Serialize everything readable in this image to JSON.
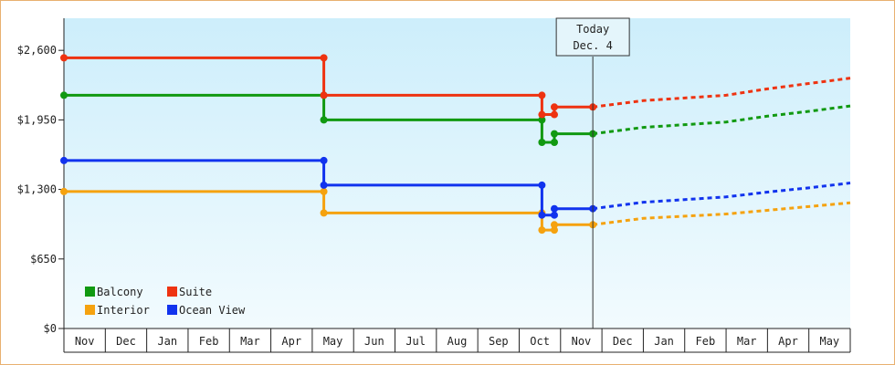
{
  "chart_data": {
    "type": "line",
    "months": [
      "Nov",
      "Dec",
      "Jan",
      "Feb",
      "Mar",
      "Apr",
      "May",
      "Jun",
      "Jul",
      "Aug",
      "Sep",
      "Oct",
      "Nov",
      "Dec",
      "Jan",
      "Feb",
      "Mar",
      "Apr",
      "May"
    ],
    "ylim": [
      0,
      2900
    ],
    "yticks": [
      0,
      650,
      1300,
      1950,
      2600
    ],
    "ytick_labels": [
      "$0",
      "$650",
      "$1,300",
      "$1,950",
      "$2,600"
    ],
    "today": {
      "label_line1": "Today",
      "label_line2": "Dec. 4",
      "x": 12.78
    },
    "grid": false,
    "legend_position": "bottom-left",
    "series": [
      {
        "name": "Balcony",
        "color": "#119911",
        "points": [
          [
            0,
            2180
          ],
          [
            6.28,
            2180
          ],
          [
            6.28,
            1950
          ],
          [
            11.55,
            1950
          ],
          [
            11.55,
            1740
          ],
          [
            11.85,
            1740
          ],
          [
            11.85,
            1820
          ],
          [
            12.78,
            1820
          ]
        ],
        "markers": [
          [
            0,
            2180
          ],
          [
            6.28,
            2180
          ],
          [
            6.28,
            1950
          ],
          [
            11.55,
            1950
          ],
          [
            11.55,
            1740
          ],
          [
            11.85,
            1740
          ],
          [
            11.85,
            1820
          ],
          [
            12.78,
            1820
          ]
        ],
        "forecast": [
          [
            12.78,
            1820
          ],
          [
            14,
            1880
          ],
          [
            15,
            1905
          ],
          [
            16,
            1930
          ],
          [
            17,
            1985
          ],
          [
            18,
            2030
          ],
          [
            19,
            2080
          ]
        ]
      },
      {
        "name": "Suite",
        "color": "#ee3311",
        "points": [
          [
            0,
            2530
          ],
          [
            6.28,
            2530
          ],
          [
            6.28,
            2180
          ],
          [
            11.55,
            2180
          ],
          [
            11.55,
            2000
          ],
          [
            11.85,
            2000
          ],
          [
            11.85,
            2070
          ],
          [
            12.78,
            2070
          ]
        ],
        "markers": [
          [
            0,
            2530
          ],
          [
            6.28,
            2530
          ],
          [
            6.28,
            2180
          ],
          [
            11.55,
            2180
          ],
          [
            11.55,
            2000
          ],
          [
            11.85,
            2000
          ],
          [
            11.85,
            2070
          ],
          [
            12.78,
            2070
          ]
        ],
        "forecast": [
          [
            12.78,
            2070
          ],
          [
            14,
            2130
          ],
          [
            15,
            2155
          ],
          [
            16,
            2180
          ],
          [
            17,
            2240
          ],
          [
            18,
            2290
          ],
          [
            19,
            2340
          ]
        ]
      },
      {
        "name": "Interior",
        "color": "#f5a20f",
        "points": [
          [
            0,
            1280
          ],
          [
            6.28,
            1280
          ],
          [
            6.28,
            1080
          ],
          [
            11.55,
            1080
          ],
          [
            11.55,
            920
          ],
          [
            11.85,
            920
          ],
          [
            11.85,
            970
          ],
          [
            12.78,
            970
          ]
        ],
        "markers": [
          [
            0,
            1280
          ],
          [
            6.28,
            1280
          ],
          [
            6.28,
            1080
          ],
          [
            11.55,
            1080
          ],
          [
            11.55,
            920
          ],
          [
            11.85,
            920
          ],
          [
            11.85,
            970
          ],
          [
            12.78,
            970
          ]
        ],
        "forecast": [
          [
            12.78,
            970
          ],
          [
            14,
            1030
          ],
          [
            15,
            1050
          ],
          [
            16,
            1070
          ],
          [
            17,
            1105
          ],
          [
            18,
            1140
          ],
          [
            19,
            1175
          ]
        ]
      },
      {
        "name": "Ocean View",
        "color": "#1133ee",
        "points": [
          [
            0,
            1570
          ],
          [
            6.28,
            1570
          ],
          [
            6.28,
            1340
          ],
          [
            11.55,
            1340
          ],
          [
            11.55,
            1060
          ],
          [
            11.85,
            1060
          ],
          [
            11.85,
            1120
          ],
          [
            12.78,
            1120
          ]
        ],
        "markers": [
          [
            0,
            1570
          ],
          [
            6.28,
            1570
          ],
          [
            6.28,
            1340
          ],
          [
            11.55,
            1340
          ],
          [
            11.55,
            1060
          ],
          [
            11.85,
            1060
          ],
          [
            11.85,
            1120
          ],
          [
            12.78,
            1120
          ]
        ],
        "forecast": [
          [
            12.78,
            1120
          ],
          [
            14,
            1180
          ],
          [
            15,
            1205
          ],
          [
            16,
            1230
          ],
          [
            17,
            1275
          ],
          [
            18,
            1315
          ],
          [
            19,
            1360
          ]
        ]
      }
    ]
  }
}
